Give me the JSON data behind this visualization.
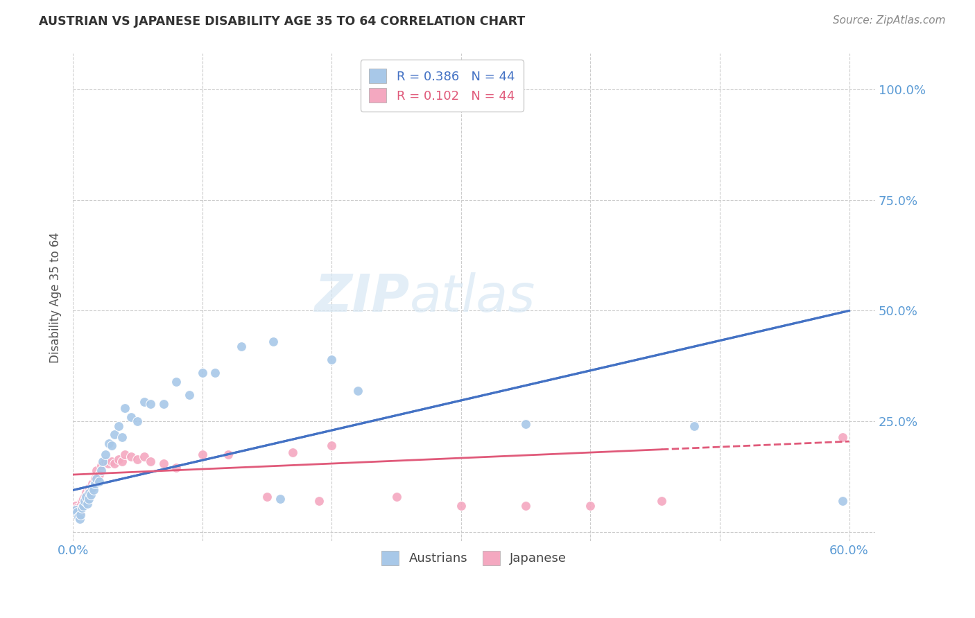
{
  "title": "AUSTRIAN VS JAPANESE DISABILITY AGE 35 TO 64 CORRELATION CHART",
  "source": "Source: ZipAtlas.com",
  "ylabel": "Disability Age 35 to 64",
  "R_austrians": 0.386,
  "N_austrians": 44,
  "R_japanese": 0.102,
  "N_japanese": 44,
  "color_austrians": "#A8C8E8",
  "color_japanese": "#F4A8C0",
  "color_line_austrians": "#4472C4",
  "color_line_japanese": "#E05A7A",
  "color_title": "#333333",
  "color_source": "#888888",
  "color_axis_ticks": "#5B9BD5",
  "austrians_x": [
    0.002,
    0.003,
    0.004,
    0.005,
    0.006,
    0.007,
    0.008,
    0.009,
    0.01,
    0.011,
    0.012,
    0.013,
    0.014,
    0.015,
    0.016,
    0.017,
    0.018,
    0.02,
    0.022,
    0.023,
    0.025,
    0.028,
    0.03,
    0.032,
    0.035,
    0.038,
    0.04,
    0.045,
    0.05,
    0.055,
    0.06,
    0.07,
    0.08,
    0.09,
    0.1,
    0.11,
    0.13,
    0.155,
    0.16,
    0.2,
    0.22,
    0.35,
    0.48,
    0.595
  ],
  "austrians_y": [
    0.05,
    0.045,
    0.035,
    0.03,
    0.04,
    0.055,
    0.06,
    0.07,
    0.08,
    0.065,
    0.075,
    0.09,
    0.085,
    0.1,
    0.095,
    0.11,
    0.12,
    0.115,
    0.14,
    0.16,
    0.175,
    0.2,
    0.195,
    0.22,
    0.24,
    0.215,
    0.28,
    0.26,
    0.25,
    0.295,
    0.29,
    0.29,
    0.34,
    0.31,
    0.36,
    0.36,
    0.42,
    0.43,
    0.075,
    0.39,
    0.32,
    0.245,
    0.24,
    0.07
  ],
  "japanese_x": [
    0.002,
    0.003,
    0.004,
    0.005,
    0.006,
    0.007,
    0.008,
    0.009,
    0.01,
    0.011,
    0.012,
    0.013,
    0.014,
    0.015,
    0.016,
    0.017,
    0.018,
    0.02,
    0.022,
    0.025,
    0.027,
    0.03,
    0.032,
    0.035,
    0.038,
    0.04,
    0.045,
    0.05,
    0.055,
    0.06,
    0.07,
    0.08,
    0.1,
    0.12,
    0.15,
    0.17,
    0.19,
    0.2,
    0.25,
    0.3,
    0.35,
    0.4,
    0.455,
    0.595
  ],
  "japanese_y": [
    0.06,
    0.055,
    0.05,
    0.045,
    0.06,
    0.07,
    0.075,
    0.08,
    0.09,
    0.085,
    0.095,
    0.1,
    0.095,
    0.11,
    0.105,
    0.12,
    0.14,
    0.13,
    0.15,
    0.16,
    0.155,
    0.16,
    0.155,
    0.165,
    0.16,
    0.175,
    0.17,
    0.165,
    0.17,
    0.16,
    0.155,
    0.145,
    0.175,
    0.175,
    0.08,
    0.18,
    0.07,
    0.195,
    0.08,
    0.06,
    0.06,
    0.06,
    0.07,
    0.215
  ],
  "xlim": [
    0.0,
    0.62
  ],
  "ylim": [
    -0.02,
    1.08
  ],
  "x_ticks": [
    0.0,
    0.1,
    0.2,
    0.3,
    0.4,
    0.5,
    0.6
  ],
  "y_ticks": [
    0.0,
    0.25,
    0.5,
    0.75,
    1.0
  ],
  "figsize": [
    14.06,
    8.92
  ],
  "dpi": 100,
  "line_austrians_x0": 0.0,
  "line_austrians_y0": 0.095,
  "line_austrians_x1": 0.6,
  "line_austrians_y1": 0.5,
  "line_japanese_x0": 0.0,
  "line_japanese_y0": 0.13,
  "line_japanese_x1": 0.6,
  "line_japanese_y1": 0.205
}
